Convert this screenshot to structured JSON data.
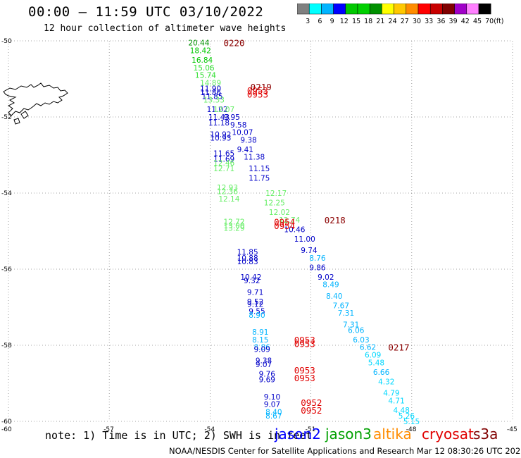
{
  "header": {
    "title": "00:00 — 11:59 UTC 03/10/2022",
    "subtitle": "12 hour collection of altimeter wave heights"
  },
  "color_scale": {
    "labels": [
      "3",
      "6",
      "9",
      "12",
      "15",
      "18",
      "21",
      "24",
      "27",
      "30",
      "33",
      "36",
      "39",
      "42",
      "45",
      "70"
    ],
    "unit": "(ft)",
    "colors": [
      "#808080",
      "#00ffff",
      "#00b4ff",
      "#0000ff",
      "#00c800",
      "#00d000",
      "#009000",
      "#ffff00",
      "#ffc800",
      "#ff8c00",
      "#ff0000",
      "#c80000",
      "#800000",
      "#a000c8",
      "#ff80ff",
      "#000000"
    ]
  },
  "axes": {
    "lat_labels": [
      "-50",
      "-52",
      "-54",
      "-56",
      "-58",
      "-60"
    ],
    "lon_labels": [
      "-60",
      "-57",
      "-54",
      "-51",
      "-48",
      "-45"
    ]
  },
  "chart_data": {
    "type": "map",
    "lat_range": [
      -60,
      -50
    ],
    "lon_range": [
      -60,
      -45
    ],
    "grid": true,
    "pass_times": [
      {
        "time": "0220",
        "lat": -50.05,
        "lon": -53.6,
        "satellite": "cryosat"
      },
      {
        "time": "0219",
        "lat": -51.2,
        "lon": -52.8,
        "satellite": "cryosat"
      },
      {
        "time": "0953",
        "lat": -51.3,
        "lon": -52.9,
        "satellite": "cryosat"
      },
      {
        "time": "0953",
        "lat": -51.4,
        "lon": -52.9,
        "satellite": "cryosat"
      },
      {
        "time": "0218",
        "lat": -54.7,
        "lon": -50.6,
        "satellite": "cryosat"
      },
      {
        "time": "0954",
        "lat": -54.75,
        "lon": -52.1,
        "satellite": "cryosat"
      },
      {
        "time": "0954",
        "lat": -54.85,
        "lon": -52.1,
        "satellite": "cryosat"
      },
      {
        "time": "0953",
        "lat": -57.85,
        "lon": -51.5,
        "satellite": "cryosat"
      },
      {
        "time": "0953",
        "lat": -57.95,
        "lon": -51.5,
        "satellite": "cryosat"
      },
      {
        "time": "0217",
        "lat": -58.05,
        "lon": -48.7,
        "satellite": "cryosat"
      },
      {
        "time": "0953",
        "lat": -58.65,
        "lon": -51.5,
        "satellite": "cryosat"
      },
      {
        "time": "0953",
        "lat": -58.85,
        "lon": -51.5,
        "satellite": "cryosat"
      },
      {
        "time": "0952",
        "lat": -59.5,
        "lon": -51.3,
        "satellite": "cryosat"
      },
      {
        "time": "0952",
        "lat": -59.7,
        "lon": -51.3,
        "satellite": "cryosat"
      }
    ],
    "observations": [
      {
        "swh": "20.44",
        "lat": -50.05,
        "lon": -54.65,
        "color": "#009000"
      },
      {
        "swh": "18.42",
        "lat": -50.25,
        "lon": -54.6,
        "color": "#00c800"
      },
      {
        "swh": "16.84",
        "lat": -50.5,
        "lon": -54.55,
        "color": "#00c800"
      },
      {
        "swh": "15.06",
        "lat": -50.7,
        "lon": -54.5,
        "color": "#33e033"
      },
      {
        "swh": "15.74",
        "lat": -50.9,
        "lon": -54.45,
        "color": "#33e033"
      },
      {
        "swh": "14.89",
        "lat": -51.1,
        "lon": -54.3,
        "color": "#66ee66"
      },
      {
        "swh": "11.90",
        "lat": -51.25,
        "lon": -54.3,
        "color": "#0000c8"
      },
      {
        "swh": "11.86",
        "lat": -51.35,
        "lon": -54.3,
        "color": "#0000c8"
      },
      {
        "swh": "11.85",
        "lat": -51.45,
        "lon": -54.25,
        "color": "#0000c8"
      },
      {
        "swh": "13.33",
        "lat": -51.55,
        "lon": -54.2,
        "color": "#66ee66"
      },
      {
        "swh": "11.02",
        "lat": -51.8,
        "lon": -54.1,
        "color": "#0000c8"
      },
      {
        "swh": "12.07",
        "lat": -51.8,
        "lon": -53.9,
        "color": "#66ee66"
      },
      {
        "swh": "11.43",
        "lat": -52.0,
        "lon": -54.05,
        "color": "#0000c8"
      },
      {
        "swh": "9.95",
        "lat": -52.0,
        "lon": -53.6,
        "color": "#0000c8"
      },
      {
        "swh": "11.18",
        "lat": -52.15,
        "lon": -54.05,
        "color": "#0000c8"
      },
      {
        "swh": "9.58",
        "lat": -52.2,
        "lon": -53.4,
        "color": "#0000c8"
      },
      {
        "swh": "10.92",
        "lat": -52.45,
        "lon": -54.0,
        "color": "#0000c8"
      },
      {
        "swh": "10.07",
        "lat": -52.4,
        "lon": -53.35,
        "color": "#0000c8"
      },
      {
        "swh": "10.93",
        "lat": -52.55,
        "lon": -54.0,
        "color": "#0000c8"
      },
      {
        "swh": "9.38",
        "lat": -52.6,
        "lon": -53.1,
        "color": "#0000c8"
      },
      {
        "swh": "9.41",
        "lat": -52.85,
        "lon": -53.2,
        "color": "#0000c8"
      },
      {
        "swh": "11.65",
        "lat": -52.95,
        "lon": -53.9,
        "color": "#0000c8"
      },
      {
        "swh": "11.38",
        "lat": -53.05,
        "lon": -53.0,
        "color": "#0000c8"
      },
      {
        "swh": "11.69",
        "lat": -53.1,
        "lon": -53.9,
        "color": "#0000c8"
      },
      {
        "swh": "12.46",
        "lat": -53.2,
        "lon": -53.9,
        "color": "#66ee66"
      },
      {
        "swh": "12.71",
        "lat": -53.35,
        "lon": -53.9,
        "color": "#66ee66"
      },
      {
        "swh": "11.15",
        "lat": -53.35,
        "lon": -52.85,
        "color": "#0000c8"
      },
      {
        "swh": "11.75",
        "lat": -53.6,
        "lon": -52.85,
        "color": "#0000c8"
      },
      {
        "swh": "12.93",
        "lat": -53.85,
        "lon": -53.8,
        "color": "#66ee66"
      },
      {
        "swh": "12.36",
        "lat": -53.95,
        "lon": -53.8,
        "color": "#66ee66"
      },
      {
        "swh": "12.17",
        "lat": -54.0,
        "lon": -52.35,
        "color": "#66ee66"
      },
      {
        "swh": "12.14",
        "lat": -54.15,
        "lon": -53.75,
        "color": "#66ee66"
      },
      {
        "swh": "12.25",
        "lat": -54.25,
        "lon": -52.4,
        "color": "#66ee66"
      },
      {
        "swh": "12.02",
        "lat": -54.5,
        "lon": -52.25,
        "color": "#66ee66"
      },
      {
        "swh": "12.74",
        "lat": -54.7,
        "lon": -51.95,
        "color": "#66ee66"
      },
      {
        "swh": "12.72",
        "lat": -54.75,
        "lon": -53.6,
        "color": "#66ee66"
      },
      {
        "swh": "13.00",
        "lat": -54.85,
        "lon": -53.6,
        "color": "#66ee66"
      },
      {
        "swh": "13.29",
        "lat": -54.92,
        "lon": -53.6,
        "color": "#66ee66"
      },
      {
        "swh": "10.46",
        "lat": -54.95,
        "lon": -51.8,
        "color": "#0000c8"
      },
      {
        "swh": "11.00",
        "lat": -55.2,
        "lon": -51.5,
        "color": "#0000c8"
      },
      {
        "swh": "9.74",
        "lat": -55.5,
        "lon": -51.3,
        "color": "#0000c8"
      },
      {
        "swh": "11.85",
        "lat": -55.55,
        "lon": -53.2,
        "color": "#0000c8"
      },
      {
        "swh": "8.76",
        "lat": -55.7,
        "lon": -51.05,
        "color": "#00b4ff"
      },
      {
        "swh": "10.88",
        "lat": -55.7,
        "lon": -53.2,
        "color": "#0000c8"
      },
      {
        "swh": "10.83",
        "lat": -55.8,
        "lon": -53.2,
        "color": "#0000c8"
      },
      {
        "swh": "9.86",
        "lat": -55.95,
        "lon": -51.05,
        "color": "#0000c8"
      },
      {
        "swh": "10.42",
        "lat": -56.2,
        "lon": -53.1,
        "color": "#0000c8"
      },
      {
        "swh": "9.02",
        "lat": -56.2,
        "lon": -50.8,
        "color": "#0000c8"
      },
      {
        "swh": "9.32",
        "lat": -56.3,
        "lon": -53.0,
        "color": "#0000c8"
      },
      {
        "swh": "8.49",
        "lat": -56.4,
        "lon": -50.65,
        "color": "#00b4ff"
      },
      {
        "swh": "9.71",
        "lat": -56.6,
        "lon": -52.9,
        "color": "#0000c8"
      },
      {
        "swh": "8.40",
        "lat": -56.7,
        "lon": -50.55,
        "color": "#00b4ff"
      },
      {
        "swh": "9.52",
        "lat": -56.85,
        "lon": -52.9,
        "color": "#0000c8"
      },
      {
        "swh": "9.12",
        "lat": -56.92,
        "lon": -52.9,
        "color": "#0000c8"
      },
      {
        "swh": "7.67",
        "lat": -56.95,
        "lon": -50.35,
        "color": "#00b4ff"
      },
      {
        "swh": "9.55",
        "lat": -57.1,
        "lon": -52.85,
        "color": "#0000c8"
      },
      {
        "swh": "7.31",
        "lat": -57.15,
        "lon": -50.2,
        "color": "#00b4ff"
      },
      {
        "swh": "8.90",
        "lat": -57.2,
        "lon": -52.85,
        "color": "#00b4ff"
      },
      {
        "swh": "7.31",
        "lat": -57.45,
        "lon": -50.05,
        "color": "#00b4ff"
      },
      {
        "swh": "8.91",
        "lat": -57.65,
        "lon": -52.75,
        "color": "#00b4ff"
      },
      {
        "swh": "6.06",
        "lat": -57.6,
        "lon": -49.9,
        "color": "#00b4ff"
      },
      {
        "swh": "6.03",
        "lat": -57.85,
        "lon": -49.75,
        "color": "#00b4ff"
      },
      {
        "swh": "8.15",
        "lat": -57.85,
        "lon": -52.75,
        "color": "#00b4ff"
      },
      {
        "swh": "8.86",
        "lat": -58.05,
        "lon": -52.7,
        "color": "#00b4ff"
      },
      {
        "swh": "9.09",
        "lat": -58.1,
        "lon": -52.7,
        "color": "#0000c8"
      },
      {
        "swh": "6.62",
        "lat": -58.05,
        "lon": -49.55,
        "color": "#00b4ff"
      },
      {
        "swh": "6.09",
        "lat": -58.25,
        "lon": -49.4,
        "color": "#00d8ff"
      },
      {
        "swh": "9.38",
        "lat": -58.4,
        "lon": -52.65,
        "color": "#0000c8"
      },
      {
        "swh": "9.07",
        "lat": -58.5,
        "lon": -52.65,
        "color": "#0000c8"
      },
      {
        "swh": "5.48",
        "lat": -58.45,
        "lon": -49.3,
        "color": "#00d8ff"
      },
      {
        "swh": "6.66",
        "lat": -58.7,
        "lon": -49.15,
        "color": "#00b4ff"
      },
      {
        "swh": "9.76",
        "lat": -58.75,
        "lon": -52.55,
        "color": "#0000c8"
      },
      {
        "swh": "9.69",
        "lat": -58.9,
        "lon": -52.55,
        "color": "#0000c8"
      },
      {
        "swh": "4.32",
        "lat": -58.95,
        "lon": -49.0,
        "color": "#00d8ff"
      },
      {
        "swh": "4.79",
        "lat": -59.25,
        "lon": -48.85,
        "color": "#00d8ff"
      },
      {
        "swh": "9.10",
        "lat": -59.35,
        "lon": -52.4,
        "color": "#0000c8"
      },
      {
        "swh": "4.71",
        "lat": -59.45,
        "lon": -48.7,
        "color": "#00d8ff"
      },
      {
        "swh": "9.07",
        "lat": -59.55,
        "lon": -52.4,
        "color": "#0000c8"
      },
      {
        "swh": "4.48",
        "lat": -59.7,
        "lon": -48.55,
        "color": "#00d8ff"
      },
      {
        "swh": "8.40",
        "lat": -59.75,
        "lon": -52.35,
        "color": "#00b4ff"
      },
      {
        "swh": "8.67",
        "lat": -59.85,
        "lon": -52.35,
        "color": "#00b4ff"
      },
      {
        "swh": "5.26",
        "lat": -59.85,
        "lon": -48.4,
        "color": "#00d8ff"
      },
      {
        "swh": "5.15",
        "lat": -60.0,
        "lon": -48.25,
        "color": "#00d8ff"
      }
    ]
  },
  "notes": {
    "text": "note: 1) Time is in UTC; 2) SWH is in feet"
  },
  "legend": [
    {
      "label": "jason2",
      "color": "#0000ff"
    },
    {
      "label": "jason3",
      "color": "#00a000"
    },
    {
      "label": "altika",
      "color": "#ff8c00"
    },
    {
      "label": "cryosat",
      "color": "#e00000"
    },
    {
      "label": "s3a",
      "color": "#800000"
    }
  ],
  "footer": {
    "text": "NOAA/NESDIS Center for Satellite Applications and Research    Mar 12 08:30:26 UTC 2022"
  }
}
